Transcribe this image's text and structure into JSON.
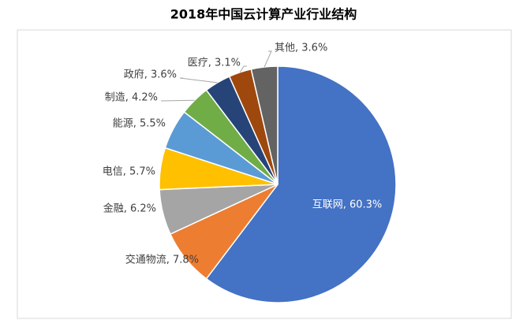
{
  "chart_data": {
    "type": "pie",
    "title": "2018年中国云计算产业行业结构",
    "values": [
      60.3,
      7.8,
      6.2,
      5.7,
      5.5,
      4.2,
      3.6,
      3.1,
      3.6
    ],
    "value_labels": [
      "互联网, 60.3%",
      "交通物流, 7.8%",
      "金融, 6.2%",
      "电信, 5.7%",
      "能源, 5.5%",
      "制造, 4.2%",
      "政府, 3.6%",
      "医疗, 3.1%",
      "其他, 3.6%"
    ],
    "colors": [
      "#4472c4",
      "#ed7d31",
      "#a5a5a5",
      "#ffc000",
      "#5b9bd5",
      "#70ad47",
      "#264478",
      "#9e480e",
      "#636363"
    ]
  }
}
